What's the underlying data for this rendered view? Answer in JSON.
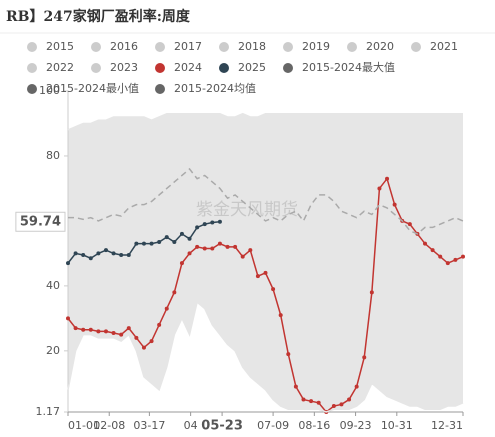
{
  "chart_data": {
    "type": "line",
    "title": "RB】247家钢厂盈利率:周度",
    "watermark": "紫金天风期货",
    "x": [
      0,
      7,
      14,
      21,
      28,
      35,
      42,
      49,
      56,
      63,
      70,
      77,
      84,
      91,
      98,
      105,
      112,
      119,
      126,
      133,
      140,
      147,
      154,
      161,
      168,
      175,
      182,
      189,
      196,
      203,
      210,
      217,
      224,
      231,
      238,
      245,
      252,
      259,
      266,
      273,
      280,
      287,
      294,
      301,
      308,
      315,
      322,
      329,
      336,
      343,
      350,
      357,
      364
    ],
    "xlim": [
      0,
      364
    ],
    "xticks": [
      {
        "value": 0,
        "label": "01-01"
      },
      {
        "value": 38,
        "label": "02-08"
      },
      {
        "value": 75,
        "label": "03-17"
      },
      {
        "value": 113,
        "label": "04"
      },
      {
        "value": 142,
        "label": "05-23"
      },
      {
        "value": 189,
        "label": "07-09"
      },
      {
        "value": 227,
        "label": "08-16"
      },
      {
        "value": 265,
        "label": "09-23"
      },
      {
        "value": 303,
        "label": "10-31"
      },
      {
        "value": 364,
        "label": "12-31"
      }
    ],
    "ylim": [
      1.17,
      100
    ],
    "yticks": [
      1.17,
      20,
      40,
      80,
      100
    ],
    "crosshair": {
      "x": 142,
      "y": 59.74
    },
    "band_color": "#e6e6e6",
    "legend_inactive": [
      "2015",
      "2016",
      "2017",
      "2018",
      "2019",
      "2020",
      "2021",
      "2022",
      "2023"
    ],
    "legend_inactive_color": "#cccccc",
    "series": [
      {
        "name": "2024",
        "color": "#c23531",
        "style": "line-markers",
        "values": [
          30,
          27,
          26.5,
          26.5,
          26,
          26,
          25.5,
          25,
          27,
          24,
          21,
          23,
          28,
          33,
          38,
          47,
          50,
          52,
          51.5,
          51.5,
          53,
          52,
          52,
          49,
          51,
          43,
          44,
          39,
          31,
          19,
          9,
          5,
          4.5,
          4,
          1.17,
          3,
          3.5,
          5,
          9,
          18,
          38,
          70,
          73,
          65,
          60,
          59,
          56,
          53,
          51,
          49,
          47,
          48,
          49
        ]
      },
      {
        "name": "2025",
        "color": "#2f4554",
        "style": "line-markers",
        "values": [
          47,
          50,
          49.5,
          48.5,
          50,
          51,
          50,
          49.5,
          49.5,
          53,
          53,
          53,
          53.5,
          55,
          53.5,
          56,
          54.5,
          58,
          59,
          59.5,
          59.74,
          null,
          null,
          null,
          null,
          null,
          null,
          null,
          null,
          null,
          null,
          null,
          null,
          null,
          null,
          null,
          null,
          null,
          null,
          null,
          null,
          null,
          null,
          null,
          null,
          null,
          null,
          null,
          null,
          null,
          null,
          null,
          null
        ]
      },
      {
        "name": "2015-2024最大值",
        "color": "#666666",
        "style": "band-upper",
        "values": [
          88,
          89,
          90,
          90,
          91,
          91,
          92,
          92,
          92,
          92,
          92,
          91,
          92,
          93,
          93,
          93,
          93,
          93,
          93,
          93,
          93,
          92,
          92,
          93,
          92,
          92,
          93,
          93,
          93,
          93,
          93,
          93,
          93,
          93,
          93,
          93,
          93,
          93,
          93,
          93,
          93,
          93,
          93,
          93,
          93,
          93,
          93,
          93,
          93,
          93,
          93,
          93,
          93
        ]
      },
      {
        "name": "2015-2024最小值",
        "color": "#666666",
        "style": "band-lower",
        "values": [
          8,
          20,
          25,
          25,
          24,
          24,
          24,
          23,
          25,
          20,
          12,
          10,
          8,
          15,
          25,
          30,
          25,
          35,
          33,
          28,
          25,
          22,
          20,
          15,
          12,
          10,
          8,
          5,
          3,
          2,
          2,
          2,
          2,
          2,
          1.17,
          2,
          2,
          2,
          3,
          5,
          10,
          8,
          6,
          5,
          4,
          3,
          3,
          2,
          2,
          2,
          3,
          3,
          4
        ]
      },
      {
        "name": "2015-2024均值",
        "color": "#666666",
        "line_color": "#aaaaaa",
        "style": "dashed",
        "values": [
          61,
          61,
          60.5,
          61,
          60,
          61,
          62,
          61.5,
          64,
          65,
          65,
          66,
          68,
          70,
          72,
          74,
          76,
          73,
          74,
          72,
          70,
          67,
          68,
          66,
          64,
          62,
          60,
          61,
          60,
          62,
          63,
          60,
          65,
          68,
          68,
          66,
          63,
          62,
          61,
          63,
          62,
          65,
          64,
          62,
          60,
          57,
          56,
          58,
          58,
          59,
          60,
          61,
          60
        ]
      }
    ]
  }
}
